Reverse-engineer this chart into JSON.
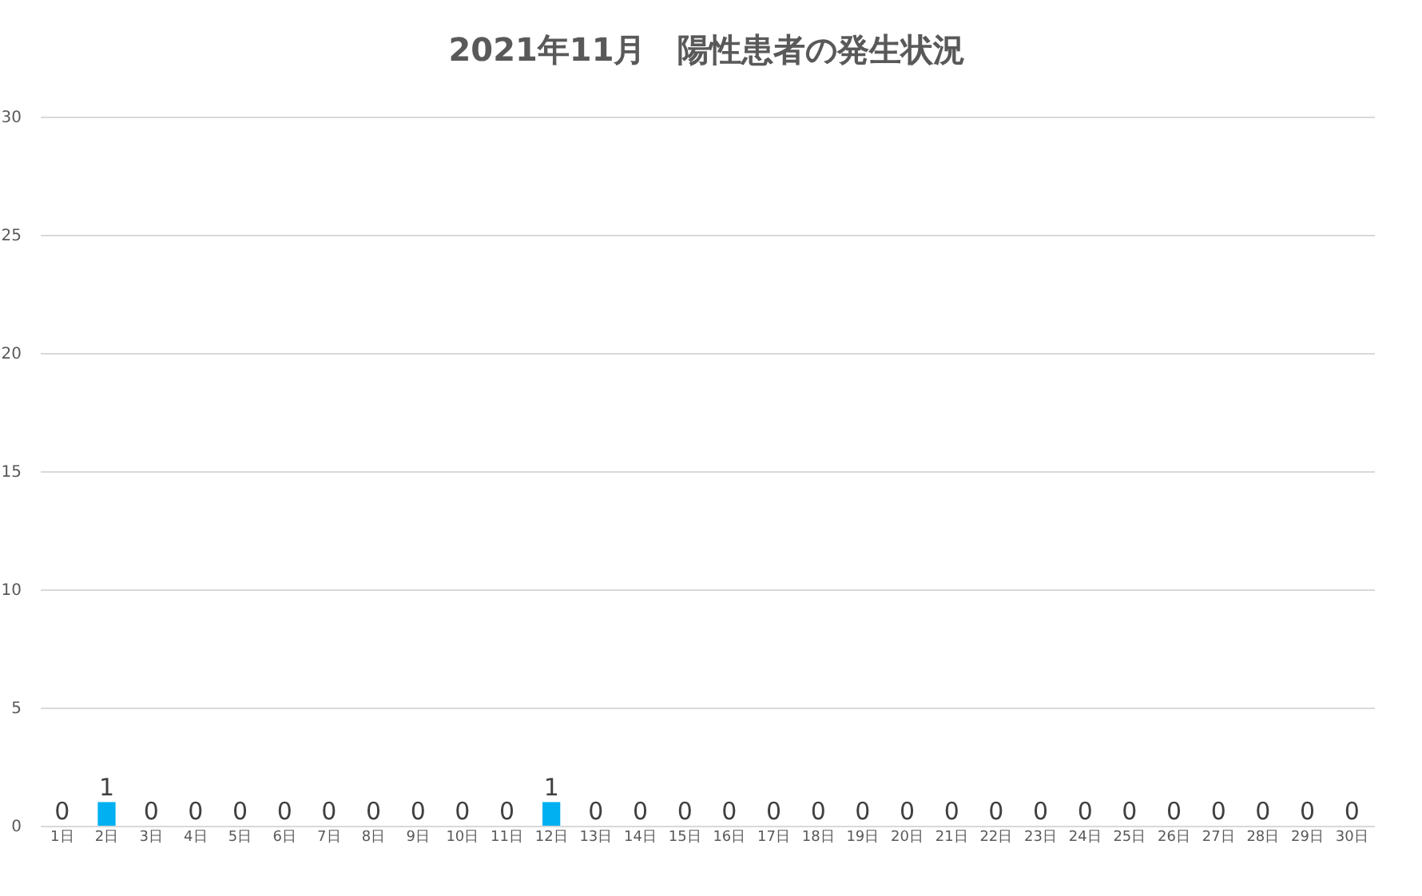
{
  "chart_data": {
    "type": "bar",
    "title": "2021年11月　陽性患者の発生状況",
    "categories": [
      "1日",
      "2日",
      "3日",
      "4日",
      "5日",
      "6日",
      "7日",
      "8日",
      "9日",
      "10日",
      "11日",
      "12日",
      "13日",
      "14日",
      "15日",
      "16日",
      "17日",
      "18日",
      "19日",
      "20日",
      "21日",
      "22日",
      "23日",
      "24日",
      "25日",
      "26日",
      "27日",
      "28日",
      "29日",
      "30日"
    ],
    "values": [
      0,
      1,
      0,
      0,
      0,
      0,
      0,
      0,
      0,
      0,
      0,
      1,
      0,
      0,
      0,
      0,
      0,
      0,
      0,
      0,
      0,
      0,
      0,
      0,
      0,
      0,
      0,
      0,
      0,
      0
    ],
    "color": "#00b0f0",
    "ylim": [
      0,
      30
    ],
    "yticks": [
      0,
      5,
      10,
      15,
      20,
      25,
      30
    ],
    "grid": "y",
    "data_labels": true
  }
}
